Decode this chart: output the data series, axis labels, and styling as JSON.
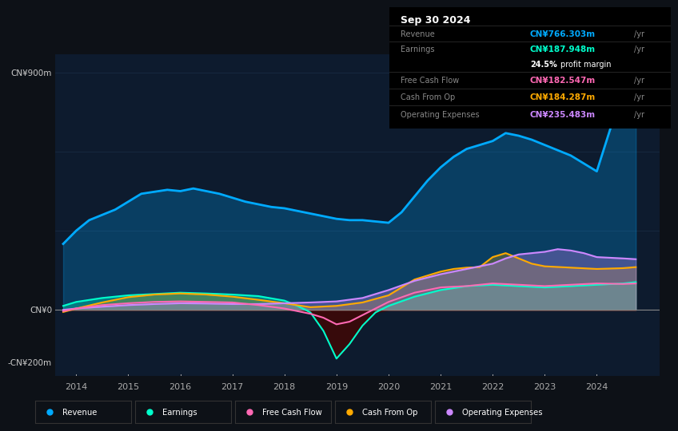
{
  "bg_color": "#0d1117",
  "plot_bg_color": "#0d1b2e",
  "title": "Sep 30 2024",
  "y_label_top": "CN¥900m",
  "y_label_zero": "CN¥0",
  "y_label_bottom": "-CN¥200m",
  "x_ticks": [
    2014,
    2015,
    2016,
    2017,
    2018,
    2019,
    2020,
    2021,
    2022,
    2023,
    2024
  ],
  "ylim": [
    -250,
    970
  ],
  "xlim": [
    2013.6,
    2025.2
  ],
  "info_rows": [
    {
      "label": "Revenue",
      "value": "CN¥766.303m",
      "color": "#00aaff"
    },
    {
      "label": "Earnings",
      "value": "CN¥187.948m",
      "color": "#00ffcc"
    },
    {
      "label": "",
      "value": "24.5% profit margin",
      "color": "#ffffff"
    },
    {
      "label": "Free Cash Flow",
      "value": "CN¥182.547m",
      "color": "#ff69b4"
    },
    {
      "label": "Cash From Op",
      "value": "CN¥184.287m",
      "color": "#ffaa00"
    },
    {
      "label": "Operating Expenses",
      "value": "CN¥235.483m",
      "color": "#cc88ff"
    }
  ],
  "series": {
    "revenue": {
      "color": "#00aaff",
      "fill_color": "#0d3a6b",
      "lw": 2.0,
      "x": [
        2013.75,
        2014.0,
        2014.25,
        2014.75,
        2015.0,
        2015.25,
        2015.75,
        2016.0,
        2016.25,
        2016.5,
        2016.75,
        2017.0,
        2017.25,
        2017.5,
        2017.75,
        2018.0,
        2018.25,
        2018.5,
        2018.75,
        2019.0,
        2019.25,
        2019.5,
        2019.75,
        2020.0,
        2020.25,
        2020.5,
        2020.75,
        2021.0,
        2021.25,
        2021.5,
        2021.75,
        2022.0,
        2022.25,
        2022.5,
        2022.75,
        2023.0,
        2023.25,
        2023.5,
        2023.75,
        2024.0,
        2024.25,
        2024.5,
        2024.75
      ],
      "y": [
        250,
        300,
        340,
        380,
        410,
        440,
        455,
        450,
        460,
        450,
        440,
        425,
        410,
        400,
        390,
        385,
        375,
        365,
        355,
        345,
        340,
        340,
        335,
        330,
        370,
        430,
        490,
        540,
        580,
        610,
        625,
        640,
        670,
        660,
        645,
        625,
        605,
        585,
        555,
        525,
        680,
        840,
        870
      ]
    },
    "earnings": {
      "color": "#00ffcc",
      "fill_color": "#0d4040",
      "lw": 1.5,
      "x": [
        2013.75,
        2014.0,
        2014.5,
        2015.0,
        2015.5,
        2016.0,
        2016.5,
        2017.0,
        2017.5,
        2018.0,
        2018.25,
        2018.5,
        2018.75,
        2019.0,
        2019.25,
        2019.5,
        2019.75,
        2020.0,
        2020.5,
        2021.0,
        2021.5,
        2022.0,
        2022.5,
        2023.0,
        2023.5,
        2024.0,
        2024.5,
        2024.75
      ],
      "y": [
        15,
        30,
        45,
        55,
        60,
        65,
        62,
        58,
        52,
        35,
        15,
        -10,
        -80,
        -185,
        -130,
        -60,
        -10,
        15,
        50,
        75,
        90,
        95,
        90,
        85,
        90,
        95,
        100,
        105
      ]
    },
    "free_cash_flow": {
      "color": "#ff69b4",
      "lw": 1.5,
      "x": [
        2013.75,
        2014.0,
        2014.5,
        2015.0,
        2015.5,
        2016.0,
        2016.5,
        2017.0,
        2017.5,
        2018.0,
        2018.25,
        2018.5,
        2018.75,
        2019.0,
        2019.25,
        2019.5,
        2019.75,
        2020.0,
        2020.5,
        2021.0,
        2021.5,
        2022.0,
        2022.5,
        2023.0,
        2023.5,
        2024.0,
        2024.5,
        2024.75
      ],
      "y": [
        -5,
        5,
        18,
        25,
        30,
        32,
        30,
        28,
        18,
        5,
        -5,
        -15,
        -30,
        -55,
        -45,
        -20,
        5,
        30,
        65,
        85,
        90,
        100,
        95,
        90,
        95,
        100,
        98,
        100
      ]
    },
    "cash_from_op": {
      "color": "#ffaa00",
      "fill_color": "#3a2a00",
      "lw": 1.5,
      "x": [
        2013.75,
        2014.0,
        2014.5,
        2015.0,
        2015.5,
        2016.0,
        2016.5,
        2017.0,
        2017.5,
        2018.0,
        2018.5,
        2019.0,
        2019.5,
        2020.0,
        2020.25,
        2020.5,
        2020.75,
        2021.0,
        2021.25,
        2021.5,
        2021.75,
        2022.0,
        2022.25,
        2022.5,
        2022.75,
        2023.0,
        2023.5,
        2024.0,
        2024.5,
        2024.75
      ],
      "y": [
        -8,
        5,
        28,
        48,
        58,
        62,
        58,
        50,
        38,
        25,
        10,
        15,
        28,
        55,
        85,
        115,
        130,
        145,
        155,
        160,
        162,
        200,
        215,
        195,
        175,
        165,
        160,
        155,
        158,
        162
      ]
    },
    "operating_expenses": {
      "color": "#cc88ff",
      "fill_color": "#2a1a4a",
      "lw": 1.5,
      "x": [
        2013.75,
        2014.0,
        2014.5,
        2015.0,
        2015.5,
        2016.0,
        2016.5,
        2017.0,
        2017.5,
        2018.0,
        2018.5,
        2019.0,
        2019.5,
        2020.0,
        2020.5,
        2021.0,
        2021.5,
        2022.0,
        2022.25,
        2022.5,
        2022.75,
        2023.0,
        2023.25,
        2023.5,
        2023.75,
        2024.0,
        2024.5,
        2024.75
      ],
      "y": [
        0,
        5,
        12,
        18,
        22,
        25,
        24,
        22,
        22,
        25,
        28,
        32,
        45,
        75,
        110,
        135,
        155,
        175,
        195,
        210,
        215,
        220,
        230,
        225,
        215,
        200,
        195,
        192
      ]
    }
  },
  "legend": [
    {
      "label": "Revenue",
      "color": "#00aaff"
    },
    {
      "label": "Earnings",
      "color": "#00ffcc"
    },
    {
      "label": "Free Cash Flow",
      "color": "#ff69b4"
    },
    {
      "label": "Cash From Op",
      "color": "#ffaa00"
    },
    {
      "label": "Operating Expenses",
      "color": "#cc88ff"
    }
  ],
  "grid_color": "#1a2d45",
  "zero_line_color": "#888888",
  "text_color": "#aaaaaa",
  "label_color": "#cccccc"
}
